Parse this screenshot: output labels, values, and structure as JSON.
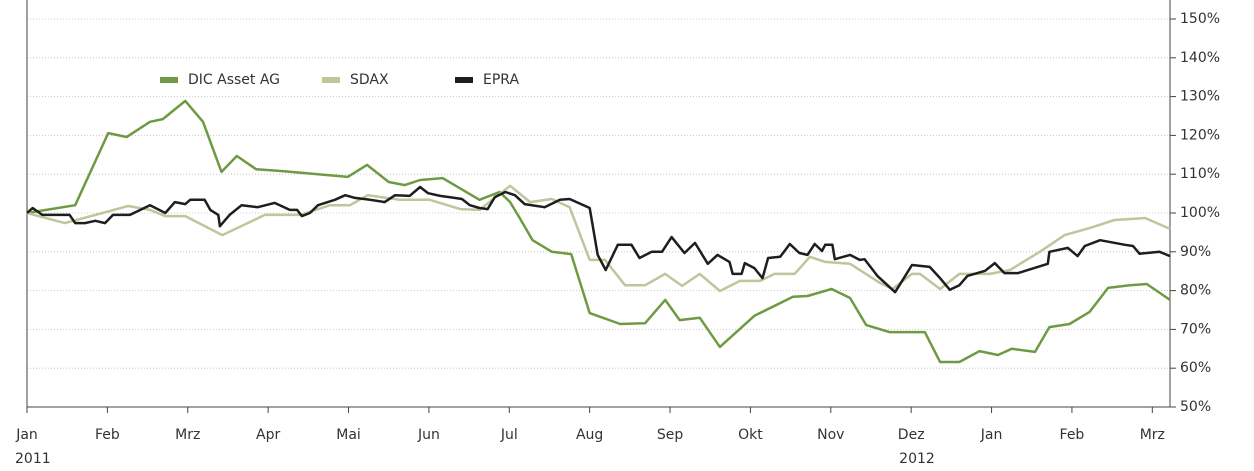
{
  "chart_data": {
    "type": "line",
    "xlim": [
      0,
      14.22
    ],
    "xticks": [
      {
        "value": 0,
        "label": "Jan"
      },
      {
        "value": 1,
        "label": "Feb"
      },
      {
        "value": 2,
        "label": "Mrz"
      },
      {
        "value": 3,
        "label": "Apr"
      },
      {
        "value": 4,
        "label": "Mai"
      },
      {
        "value": 5,
        "label": "Jun"
      },
      {
        "value": 6,
        "label": "Jul"
      },
      {
        "value": 7,
        "label": "Aug"
      },
      {
        "value": 8,
        "label": "Sep"
      },
      {
        "value": 9,
        "label": "Okt"
      },
      {
        "value": 10,
        "label": "Nov"
      },
      {
        "value": 11,
        "label": "Dez"
      },
      {
        "value": 12,
        "label": "Jan"
      },
      {
        "value": 13,
        "label": "Feb"
      },
      {
        "value": 14,
        "label": "Mrz"
      }
    ],
    "year_labels": [
      {
        "value": 0,
        "label": "2011"
      },
      {
        "value": 11,
        "label": "2012"
      }
    ],
    "ylim": [
      50,
      150
    ],
    "yticks": [
      {
        "value": 50,
        "label": "50%"
      },
      {
        "value": 60,
        "label": "60%"
      },
      {
        "value": 70,
        "label": "70%"
      },
      {
        "value": 80,
        "label": "80%"
      },
      {
        "value": 90,
        "label": "90%"
      },
      {
        "value": 100,
        "label": "100%"
      },
      {
        "value": 110,
        "label": "110%"
      },
      {
        "value": 120,
        "label": "120%"
      },
      {
        "value": 130,
        "label": "130%"
      },
      {
        "value": 140,
        "label": "140%"
      },
      {
        "value": 150,
        "label": "150%"
      }
    ],
    "grid": true,
    "series": [
      {
        "name": "DIC Asset AG",
        "color": "#6f9a44",
        "x": [
          0,
          0.6,
          1.01,
          1.24,
          1.53,
          1.69,
          1.97,
          2.19,
          2.42,
          2.61,
          2.85,
          3.18,
          3.99,
          4.23,
          4.5,
          4.7,
          4.89,
          5.17,
          5.63,
          5.88,
          6.01,
          6.13,
          6.29,
          6.53,
          6.77,
          7.0,
          7.38,
          7.69,
          7.94,
          8.12,
          8.37,
          8.62,
          9.05,
          9.53,
          9.71,
          10.01,
          10.24,
          10.44,
          10.73,
          11.17,
          11.36,
          11.6,
          11.85,
          12.08,
          12.25,
          12.54,
          12.72,
          12.97,
          13.22,
          13.45,
          13.72,
          13.93,
          14.22
        ],
        "values": [
          100,
          102,
          120.6,
          119.6,
          123.5,
          124.2,
          128.9,
          123.5,
          110.6,
          114.7,
          111.3,
          110.8,
          109.3,
          112.4,
          108,
          107.2,
          108.5,
          109,
          103.4,
          105.4,
          102.8,
          98.7,
          93,
          90,
          89.4,
          74.2,
          71.4,
          71.6,
          77.6,
          72.4,
          73,
          65.5,
          73.5,
          78.4,
          78.6,
          80.4,
          78.1,
          71.1,
          69.3,
          69.3,
          61.6,
          61.6,
          64.4,
          63.4,
          65,
          64.2,
          70.6,
          71.4,
          74.5,
          80.7,
          81.4,
          81.7,
          77.6
        ]
      },
      {
        "name": "SDAX",
        "color": "#bcc79b",
        "x": [
          0,
          0.47,
          0.85,
          1.26,
          1.53,
          1.72,
          1.97,
          2.43,
          2.96,
          3.4,
          3.77,
          4.02,
          4.24,
          4.64,
          5.01,
          5.39,
          5.63,
          6.01,
          6.26,
          6.53,
          6.75,
          7.0,
          7.19,
          7.44,
          7.69,
          7.94,
          8.15,
          8.37,
          8.62,
          8.87,
          9.12,
          9.3,
          9.55,
          9.74,
          9.93,
          10.24,
          10.61,
          10.77,
          11.01,
          11.11,
          11.36,
          11.6,
          11.98,
          12.23,
          12.6,
          12.91,
          13.22,
          13.53,
          13.91,
          14.22
        ],
        "values": [
          100,
          97.4,
          99.5,
          101.8,
          100.8,
          99.2,
          99.2,
          94.3,
          99.5,
          99.5,
          102,
          102,
          104.6,
          103.4,
          103.4,
          101,
          100.8,
          107,
          102.8,
          103.6,
          101.5,
          87.9,
          87.9,
          81.4,
          81.4,
          84.3,
          81.2,
          84.3,
          79.9,
          82.5,
          82.5,
          84.3,
          84.3,
          88.7,
          87.4,
          86.9,
          82,
          80.4,
          84.3,
          84.3,
          80.4,
          84.3,
          84.3,
          85.3,
          90,
          94.3,
          96.1,
          98.2,
          98.7,
          95.9
        ]
      },
      {
        "name": "EPRA",
        "color": "#1e1e1e",
        "x": [
          0,
          0.07,
          0.19,
          0.53,
          0.6,
          0.72,
          0.85,
          0.97,
          1.07,
          1.28,
          1.53,
          1.72,
          1.84,
          1.97,
          2.03,
          2.21,
          2.28,
          2.38,
          2.4,
          2.52,
          2.67,
          2.87,
          3.08,
          3.27,
          3.36,
          3.42,
          3.52,
          3.62,
          3.83,
          3.96,
          4.08,
          4.27,
          4.45,
          4.58,
          4.76,
          4.89,
          4.99,
          5.14,
          5.32,
          5.41,
          5.51,
          5.63,
          5.73,
          5.82,
          5.95,
          6.07,
          6.19,
          6.44,
          6.63,
          6.75,
          7.0,
          7.1,
          7.2,
          7.35,
          7.52,
          7.62,
          7.77,
          7.9,
          8.02,
          8.18,
          8.31,
          8.47,
          8.59,
          8.74,
          8.78,
          8.89,
          8.93,
          9.05,
          9.15,
          9.22,
          9.37,
          9.49,
          9.61,
          9.71,
          9.8,
          9.89,
          9.93,
          10.02,
          10.05,
          10.24,
          10.36,
          10.42,
          10.58,
          10.8,
          11.01,
          11.23,
          11.36,
          11.48,
          11.6,
          11.7,
          11.92,
          12.04,
          12.16,
          12.33,
          12.7,
          12.72,
          12.95,
          13.07,
          13.16,
          13.35,
          13.66,
          13.76,
          13.84,
          14.09,
          14.22
        ],
        "values": [
          100,
          101.3,
          99.5,
          99.5,
          97.4,
          97.4,
          98,
          97.4,
          99.5,
          99.5,
          102,
          100,
          102.8,
          102.3,
          103.4,
          103.4,
          100.8,
          99.5,
          96.6,
          99.5,
          102,
          101.5,
          102.6,
          100.8,
          100.8,
          99.2,
          100,
          102,
          103.4,
          104.6,
          103.9,
          103.4,
          102.8,
          104.6,
          104.4,
          106.7,
          105.1,
          104.4,
          103.9,
          103.6,
          102,
          101.3,
          101,
          104.1,
          105.4,
          104.6,
          102.3,
          101.5,
          103.4,
          103.6,
          101.3,
          89.2,
          85.3,
          91.8,
          91.8,
          88.4,
          90,
          90,
          93.8,
          89.7,
          92.3,
          86.9,
          89.2,
          87.4,
          84.3,
          84.3,
          87.1,
          85.8,
          83.2,
          88.4,
          88.7,
          92,
          89.7,
          89.2,
          92,
          90.2,
          91.8,
          91.8,
          88.1,
          89.2,
          87.9,
          88.1,
          83.8,
          79.6,
          86.6,
          86.1,
          83.2,
          80.2,
          81.4,
          83.8,
          85.1,
          87.1,
          84.5,
          84.5,
          86.9,
          90,
          91,
          88.9,
          91.5,
          93,
          91.8,
          91.5,
          89.5,
          90,
          88.9
        ]
      }
    ]
  }
}
